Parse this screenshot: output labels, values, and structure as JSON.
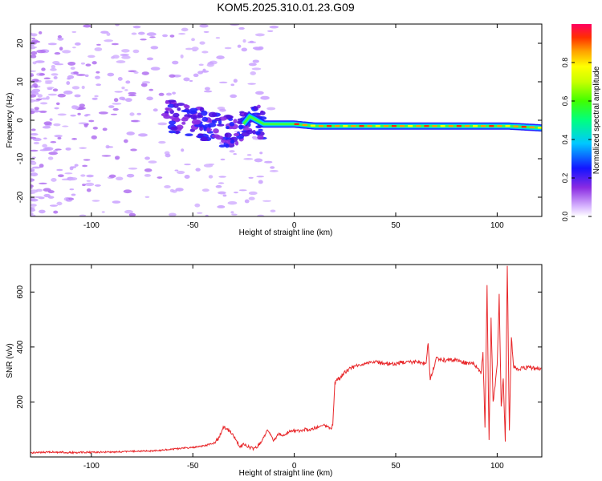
{
  "title": "KOM5.2025.310.01.23.G09",
  "chart_data": [
    {
      "type": "heatmap",
      "xlabel": "Height of straight line (km)",
      "ylabel": "Frequency (Hz)",
      "xlim": [
        -130,
        122
      ],
      "ylim": [
        -25,
        25
      ],
      "xticks": [
        -100,
        -50,
        0,
        50,
        100
      ],
      "yticks": [
        -20,
        -10,
        0,
        10,
        20
      ],
      "colorbar": {
        "label": "Normalized spectral amplitude",
        "range": [
          0,
          1
        ],
        "ticks": [
          "0.0",
          "0.2",
          "0.4",
          "0.6",
          "0.8"
        ]
      },
      "ridge": {
        "description_points": [
          [
            -60,
            1
          ],
          [
            -45,
            -1
          ],
          [
            -35,
            -3
          ],
          [
            -28,
            -3
          ],
          [
            -22,
            1
          ],
          [
            -15,
            -1
          ],
          [
            -5,
            -1
          ],
          [
            0,
            -1
          ],
          [
            10,
            -1.5
          ],
          [
            25,
            -1.5
          ],
          [
            40,
            -1.5
          ],
          [
            60,
            -1.5
          ],
          [
            80,
            -1.5
          ],
          [
            95,
            -1.5
          ],
          [
            105,
            -1.5
          ],
          [
            122,
            -2
          ]
        ]
      }
    },
    {
      "type": "line",
      "xlabel": "Height of straight line (km)",
      "ylabel": "SNR (v/v)",
      "xlim": [
        -130,
        122
      ],
      "ylim": [
        0,
        700
      ],
      "xticks": [
        -100,
        -50,
        0,
        50,
        100
      ],
      "yticks": [
        200,
        400,
        600
      ],
      "series": [
        {
          "color": "#e8272a",
          "x": [
            -130,
            -120,
            -110,
            -100,
            -90,
            -80,
            -70,
            -60,
            -55,
            -50,
            -45,
            -40,
            -37,
            -35,
            -32,
            -30,
            -27,
            -25,
            -22,
            -20,
            -18,
            -15,
            -13,
            -10,
            -8,
            -5,
            -3,
            0,
            3,
            5,
            8,
            10,
            13,
            15,
            18,
            19,
            20,
            21,
            23,
            25,
            30,
            35,
            40,
            45,
            50,
            55,
            60,
            65,
            66,
            67,
            70,
            75,
            80,
            85,
            88,
            90,
            92,
            93,
            94,
            95,
            96,
            97,
            98,
            100,
            101,
            102,
            103,
            104,
            105,
            106,
            107,
            108,
            110,
            115,
            122
          ],
          "y": [
            15,
            18,
            16,
            17,
            18,
            20,
            22,
            28,
            32,
            35,
            40,
            48,
            70,
            110,
            95,
            80,
            40,
            45,
            35,
            30,
            40,
            70,
            100,
            60,
            85,
            80,
            90,
            95,
            95,
            100,
            100,
            105,
            110,
            115,
            100,
            120,
            270,
            280,
            290,
            310,
            330,
            340,
            345,
            340,
            340,
            345,
            345,
            340,
            420,
            280,
            360,
            350,
            355,
            340,
            340,
            330,
            300,
            380,
            110,
            620,
            60,
            500,
            200,
            330,
            590,
            180,
            290,
            60,
            700,
            90,
            440,
            330,
            320,
            325,
            320
          ]
        }
      ]
    }
  ]
}
